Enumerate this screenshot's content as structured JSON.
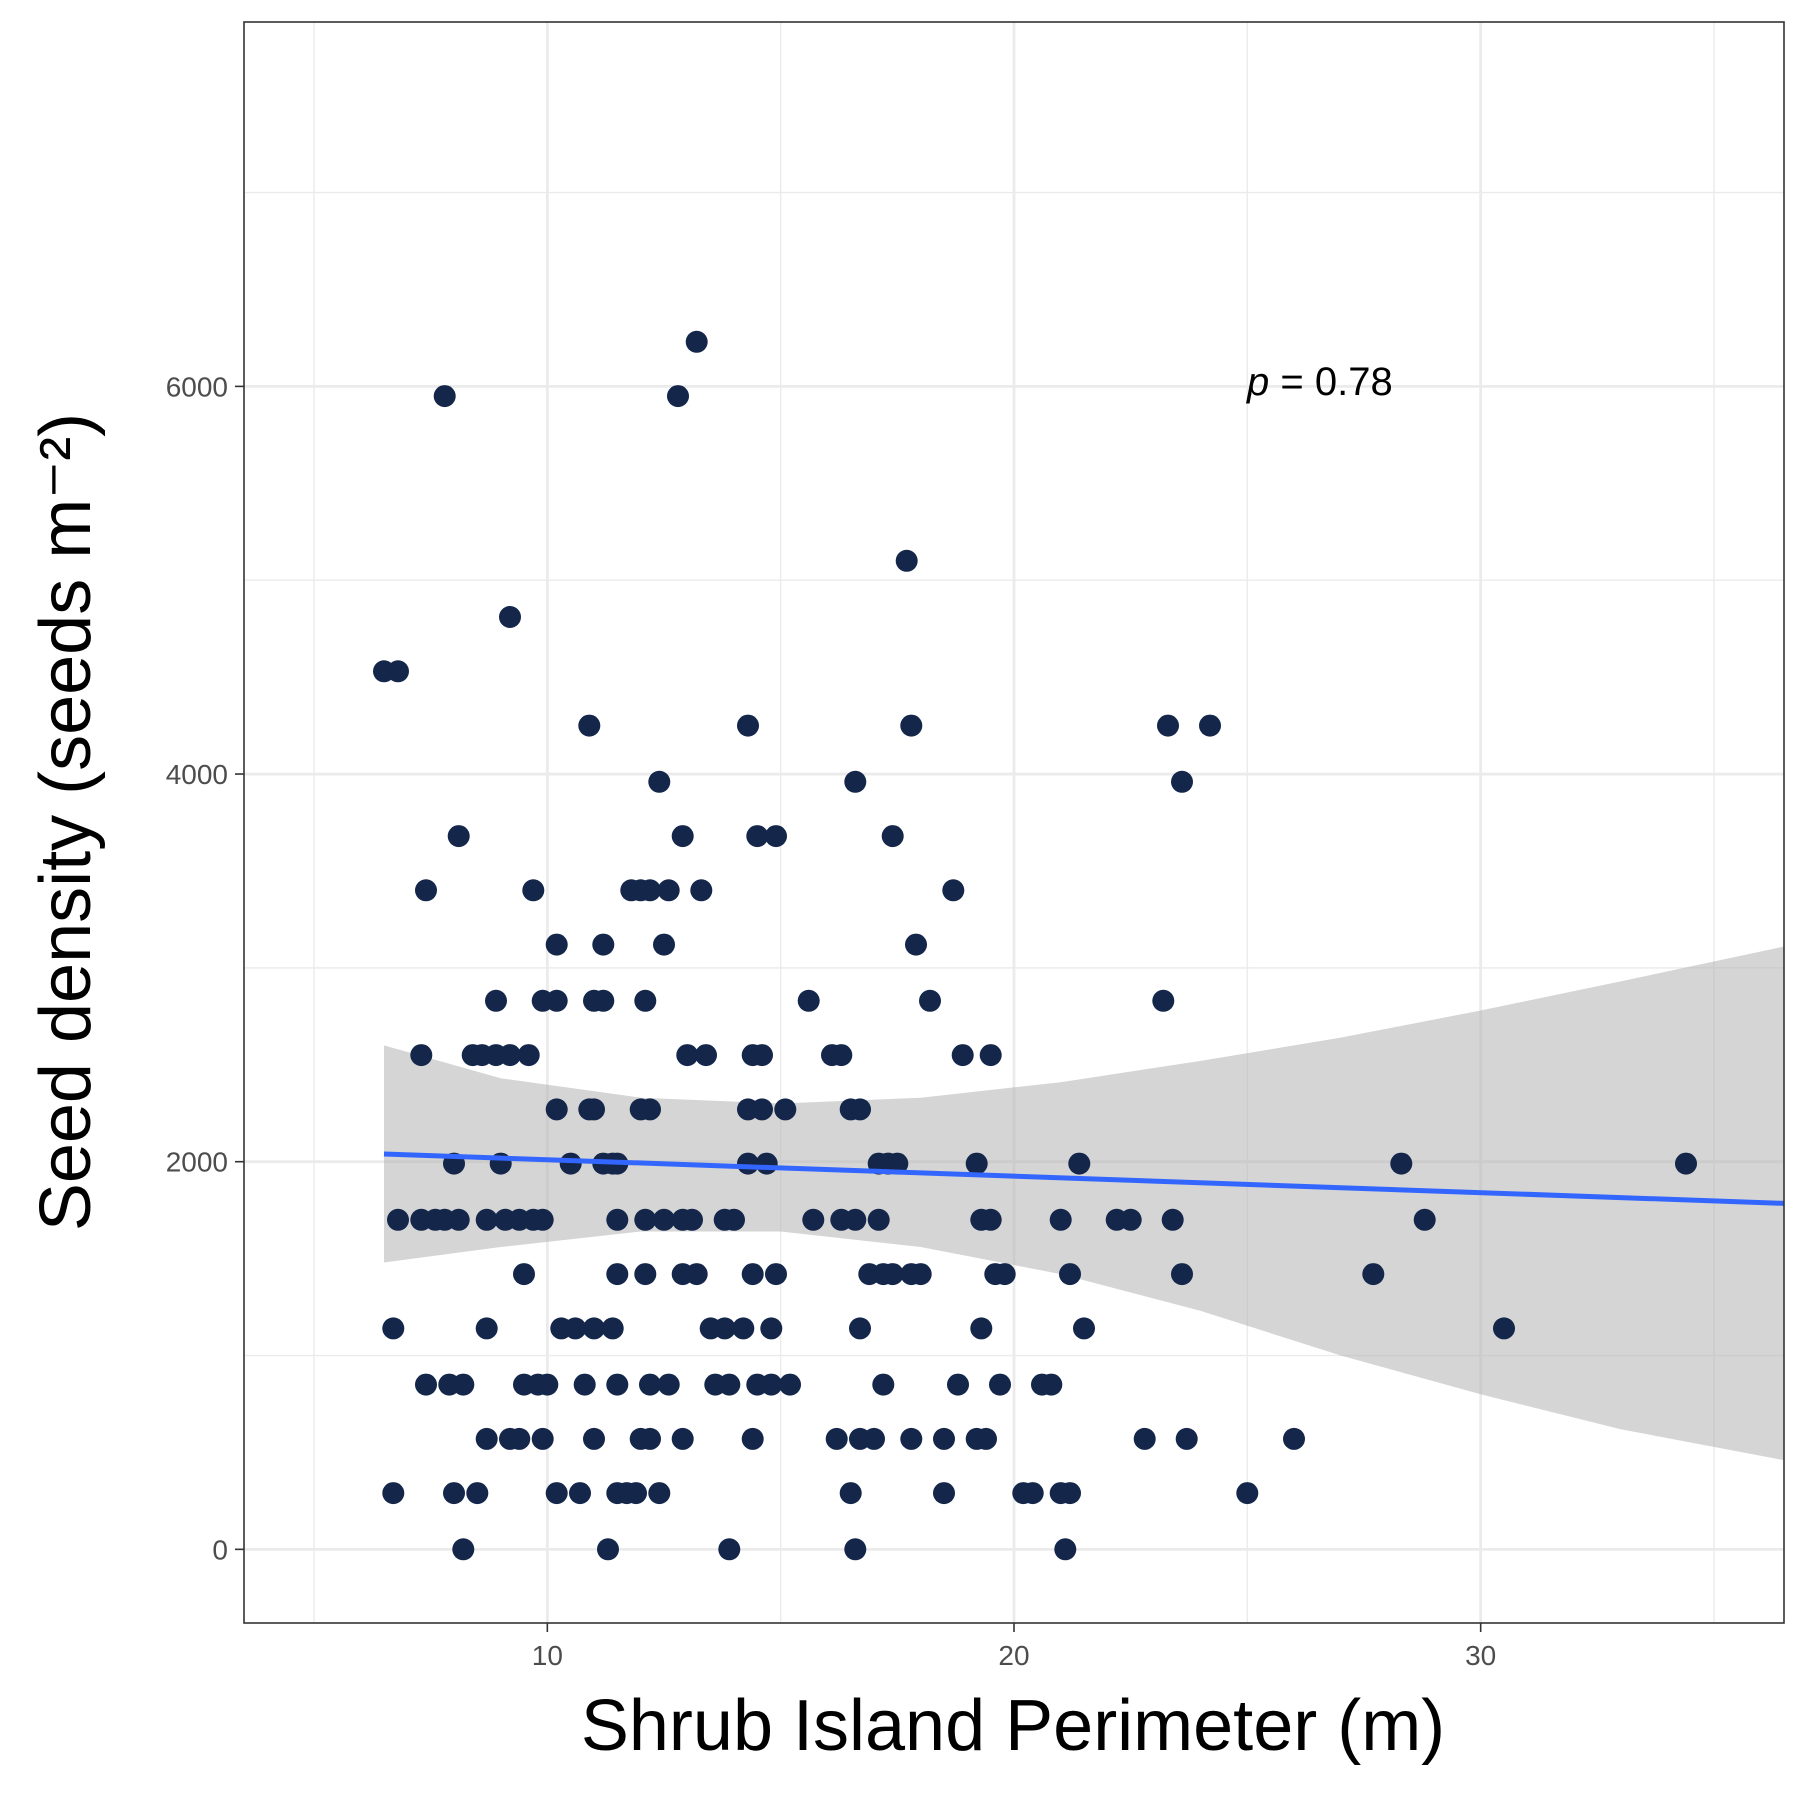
{
  "chart_data": {
    "type": "scatter",
    "xlabel": "Shrub Island Perimeter (m)",
    "ylabel": "Seed density (seeds m⁻²)",
    "x_ticks": [
      10,
      20,
      30
    ],
    "y_ticks": [
      0,
      2000,
      4000,
      6000
    ],
    "x_tick_labels": [
      "10",
      "20",
      "30"
    ],
    "y_tick_labels": [
      "0",
      "2000",
      "4000",
      "6000"
    ],
    "xlim": [
      3.5,
      36.5
    ],
    "ylim": [
      -380,
      7880
    ],
    "grid": true,
    "annotation": {
      "italic": "p",
      "text": " = 0.78",
      "x": 25,
      "y": 6000
    },
    "colors": {
      "points": "#14264a",
      "fit_line": "#3366ff",
      "ribbon": "#b3b3b3",
      "grid": "#ebebeb",
      "border": "#333333"
    },
    "fit": {
      "method": "linear regression",
      "x": [
        6.5,
        36.5
      ],
      "y": [
        2040,
        1785
      ],
      "ci_x": [
        6.5,
        9,
        12,
        15,
        18,
        21,
        24,
        27,
        30,
        33,
        36.5
      ],
      "ci_upper": [
        2600,
        2430,
        2330,
        2300,
        2330,
        2410,
        2520,
        2640,
        2780,
        2930,
        3110
      ],
      "ci_lower": [
        1480,
        1560,
        1640,
        1640,
        1560,
        1420,
        1230,
        1000,
        800,
        620,
        460
      ]
    },
    "points": [
      [
        6.5,
        4530
      ],
      [
        6.8,
        4530
      ],
      [
        9.2,
        4810
      ],
      [
        7.8,
        5950
      ],
      [
        12.8,
        5950
      ],
      [
        13.2,
        6230
      ],
      [
        17.7,
        5100
      ],
      [
        10.9,
        4250
      ],
      [
        14.3,
        4250
      ],
      [
        17.8,
        4250
      ],
      [
        23.3,
        4250
      ],
      [
        24.2,
        4250
      ],
      [
        12.4,
        3960
      ],
      [
        16.6,
        3960
      ],
      [
        23.6,
        3960
      ],
      [
        8.1,
        3680
      ],
      [
        12.9,
        3680
      ],
      [
        14.5,
        3680
      ],
      [
        14.9,
        3680
      ],
      [
        17.4,
        3680
      ],
      [
        7.4,
        3400
      ],
      [
        9.7,
        3400
      ],
      [
        11.8,
        3400
      ],
      [
        12.0,
        3400
      ],
      [
        12.2,
        3400
      ],
      [
        12.6,
        3400
      ],
      [
        13.3,
        3400
      ],
      [
        18.7,
        3400
      ],
      [
        10.2,
        3120
      ],
      [
        11.2,
        3120
      ],
      [
        12.5,
        3120
      ],
      [
        17.9,
        3120
      ],
      [
        8.9,
        2830
      ],
      [
        9.9,
        2830
      ],
      [
        10.2,
        2830
      ],
      [
        11.0,
        2830
      ],
      [
        11.2,
        2830
      ],
      [
        12.1,
        2830
      ],
      [
        15.6,
        2830
      ],
      [
        18.2,
        2830
      ],
      [
        23.2,
        2830
      ],
      [
        7.3,
        2550
      ],
      [
        8.4,
        2550
      ],
      [
        8.6,
        2550
      ],
      [
        8.9,
        2550
      ],
      [
        9.2,
        2550
      ],
      [
        9.6,
        2550
      ],
      [
        13.0,
        2550
      ],
      [
        13.4,
        2550
      ],
      [
        14.4,
        2550
      ],
      [
        14.6,
        2550
      ],
      [
        16.1,
        2550
      ],
      [
        16.3,
        2550
      ],
      [
        18.9,
        2550
      ],
      [
        19.5,
        2550
      ],
      [
        10.2,
        2270
      ],
      [
        10.9,
        2270
      ],
      [
        11.0,
        2270
      ],
      [
        12.0,
        2270
      ],
      [
        12.2,
        2270
      ],
      [
        14.3,
        2270
      ],
      [
        14.6,
        2270
      ],
      [
        15.1,
        2270
      ],
      [
        16.5,
        2270
      ],
      [
        16.7,
        2270
      ],
      [
        8.0,
        1990
      ],
      [
        9.0,
        1990
      ],
      [
        10.5,
        1990
      ],
      [
        11.2,
        1990
      ],
      [
        11.4,
        1990
      ],
      [
        11.5,
        1990
      ],
      [
        14.3,
        1990
      ],
      [
        14.7,
        1990
      ],
      [
        17.1,
        1990
      ],
      [
        17.3,
        1990
      ],
      [
        17.5,
        1990
      ],
      [
        19.2,
        1990
      ],
      [
        21.4,
        1990
      ],
      [
        28.3,
        1990
      ],
      [
        34.4,
        1990
      ],
      [
        6.8,
        1700
      ],
      [
        7.3,
        1700
      ],
      [
        7.6,
        1700
      ],
      [
        7.8,
        1700
      ],
      [
        8.1,
        1700
      ],
      [
        8.7,
        1700
      ],
      [
        9.1,
        1700
      ],
      [
        9.4,
        1700
      ],
      [
        9.7,
        1700
      ],
      [
        9.9,
        1700
      ],
      [
        11.5,
        1700
      ],
      [
        12.1,
        1700
      ],
      [
        12.5,
        1700
      ],
      [
        12.9,
        1700
      ],
      [
        13.1,
        1700
      ],
      [
        13.8,
        1700
      ],
      [
        14.0,
        1700
      ],
      [
        15.7,
        1700
      ],
      [
        16.3,
        1700
      ],
      [
        16.6,
        1700
      ],
      [
        17.1,
        1700
      ],
      [
        19.3,
        1700
      ],
      [
        19.5,
        1700
      ],
      [
        21.0,
        1700
      ],
      [
        22.2,
        1700
      ],
      [
        22.5,
        1700
      ],
      [
        23.4,
        1700
      ],
      [
        28.8,
        1700
      ],
      [
        9.5,
        1420
      ],
      [
        11.5,
        1420
      ],
      [
        12.1,
        1420
      ],
      [
        12.9,
        1420
      ],
      [
        13.2,
        1420
      ],
      [
        14.4,
        1420
      ],
      [
        14.9,
        1420
      ],
      [
        16.9,
        1420
      ],
      [
        17.2,
        1420
      ],
      [
        17.4,
        1420
      ],
      [
        17.8,
        1420
      ],
      [
        18.0,
        1420
      ],
      [
        19.6,
        1420
      ],
      [
        19.8,
        1420
      ],
      [
        21.2,
        1420
      ],
      [
        23.6,
        1420
      ],
      [
        27.7,
        1420
      ],
      [
        6.7,
        1140
      ],
      [
        8.7,
        1140
      ],
      [
        10.3,
        1140
      ],
      [
        10.6,
        1140
      ],
      [
        11.0,
        1140
      ],
      [
        11.4,
        1140
      ],
      [
        13.5,
        1140
      ],
      [
        13.8,
        1140
      ],
      [
        14.2,
        1140
      ],
      [
        14.8,
        1140
      ],
      [
        16.7,
        1140
      ],
      [
        19.3,
        1140
      ],
      [
        21.5,
        1140
      ],
      [
        30.5,
        1140
      ],
      [
        7.4,
        850
      ],
      [
        7.9,
        850
      ],
      [
        8.2,
        850
      ],
      [
        9.5,
        850
      ],
      [
        9.8,
        850
      ],
      [
        10.0,
        850
      ],
      [
        10.8,
        850
      ],
      [
        11.5,
        850
      ],
      [
        12.2,
        850
      ],
      [
        12.6,
        850
      ],
      [
        13.6,
        850
      ],
      [
        13.9,
        850
      ],
      [
        14.5,
        850
      ],
      [
        14.8,
        850
      ],
      [
        15.2,
        850
      ],
      [
        17.2,
        850
      ],
      [
        18.8,
        850
      ],
      [
        19.7,
        850
      ],
      [
        20.6,
        850
      ],
      [
        20.8,
        850
      ],
      [
        8.7,
        570
      ],
      [
        9.2,
        570
      ],
      [
        9.4,
        570
      ],
      [
        9.9,
        570
      ],
      [
        11.0,
        570
      ],
      [
        12.0,
        570
      ],
      [
        12.2,
        570
      ],
      [
        12.9,
        570
      ],
      [
        14.4,
        570
      ],
      [
        16.2,
        570
      ],
      [
        16.7,
        570
      ],
      [
        17.0,
        570
      ],
      [
        17.8,
        570
      ],
      [
        18.5,
        570
      ],
      [
        19.2,
        570
      ],
      [
        19.4,
        570
      ],
      [
        22.8,
        570
      ],
      [
        23.7,
        570
      ],
      [
        26.0,
        570
      ],
      [
        6.7,
        290
      ],
      [
        8.0,
        290
      ],
      [
        8.5,
        290
      ],
      [
        10.2,
        290
      ],
      [
        10.7,
        290
      ],
      [
        11.5,
        290
      ],
      [
        11.7,
        290
      ],
      [
        11.9,
        290
      ],
      [
        12.4,
        290
      ],
      [
        16.5,
        290
      ],
      [
        18.5,
        290
      ],
      [
        20.2,
        290
      ],
      [
        20.4,
        290
      ],
      [
        21.0,
        290
      ],
      [
        21.2,
        290
      ],
      [
        25.0,
        290
      ],
      [
        8.2,
        0
      ],
      [
        11.3,
        0
      ],
      [
        13.9,
        0
      ],
      [
        16.6,
        0
      ],
      [
        21.1,
        0
      ]
    ]
  }
}
